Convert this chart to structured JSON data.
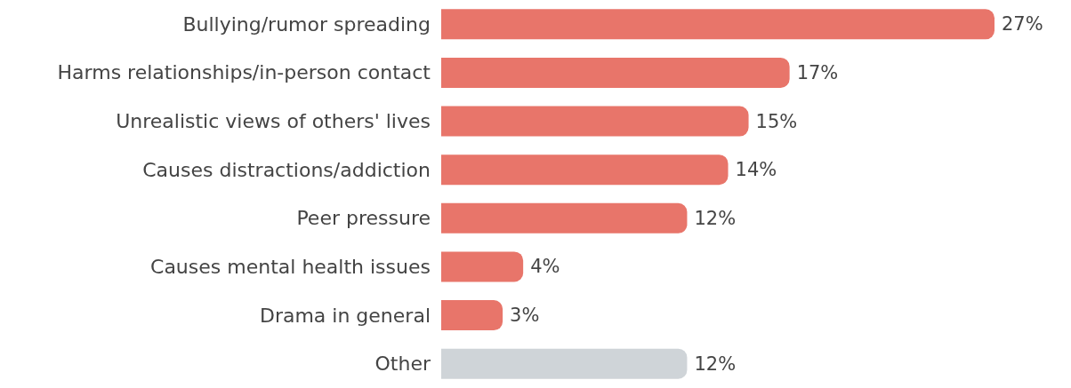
{
  "chart_data": {
    "type": "bar",
    "orientation": "horizontal",
    "categories": [
      "Bullying/rumor spreading",
      "Harms relationships/in-person contact",
      "Unrealistic views of others' lives",
      "Causes distractions/addiction",
      "Peer pressure",
      "Causes mental health issues",
      "Drama in general",
      "Other"
    ],
    "values": [
      27,
      17,
      15,
      14,
      12,
      4,
      3,
      12
    ],
    "colors": [
      "#e8756a",
      "#e8756a",
      "#e8756a",
      "#e8756a",
      "#e8756a",
      "#e8756a",
      "#e8756a",
      "#cfd4d8"
    ],
    "value_labels": [
      "27%",
      "17%",
      "15%",
      "14%",
      "12%",
      "4%",
      "3%",
      "12%"
    ]
  }
}
